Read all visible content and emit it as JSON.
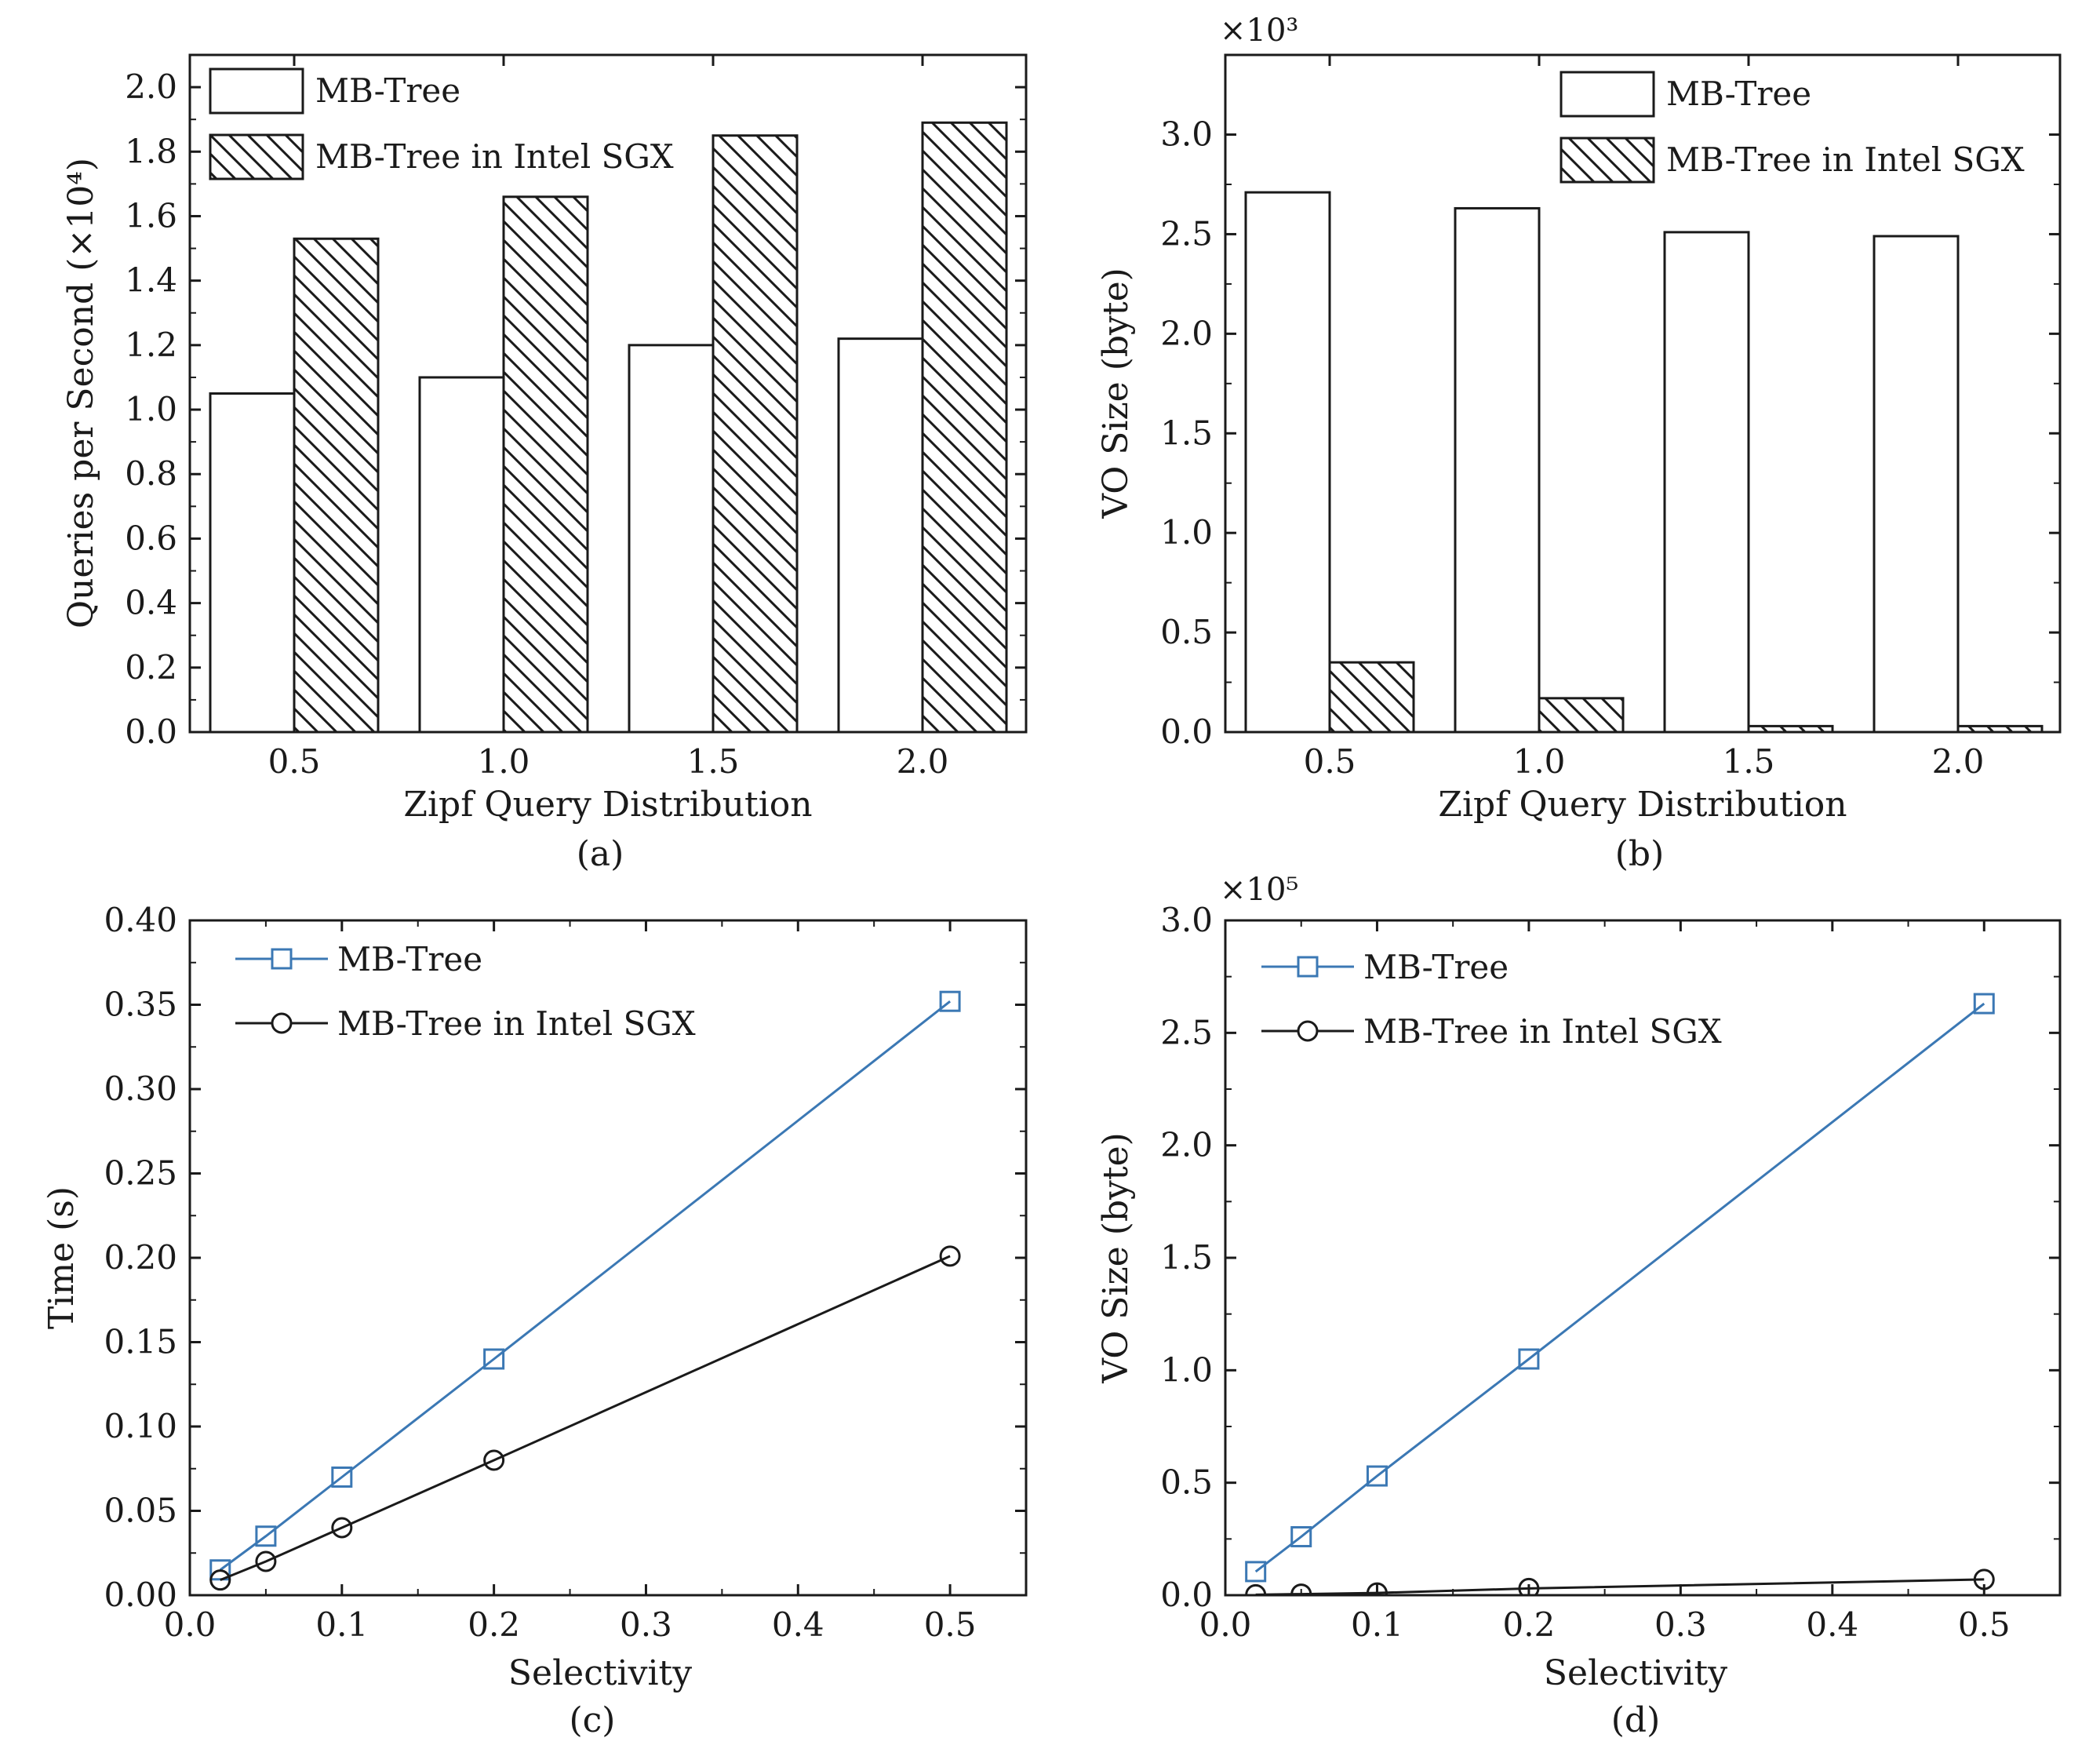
{
  "colors": {
    "mbtree_line": "#3b78b4",
    "sgx_line": "#1a1a1a",
    "axis": "#1a1a1a"
  },
  "chart_data": [
    {
      "type": "bar",
      "panel": "(a)",
      "xlabel": "Zipf Query Distribution",
      "ylabel": "Queries per Second (×10⁴)",
      "categories": [
        "0.5",
        "1.0",
        "1.5",
        "2.0"
      ],
      "ylim": [
        0,
        2.1
      ],
      "yticks": [
        "0.0",
        "0.2",
        "0.4",
        "0.6",
        "0.8",
        "1.0",
        "1.2",
        "1.4",
        "1.6",
        "1.8",
        "2.0"
      ],
      "legend_position": "top-left",
      "series": [
        {
          "name": "MB-Tree",
          "pattern": "plain",
          "values": [
            1.05,
            1.1,
            1.2,
            1.22
          ]
        },
        {
          "name": "MB-Tree in Intel SGX",
          "pattern": "hatched",
          "values": [
            1.53,
            1.66,
            1.85,
            1.89
          ]
        }
      ]
    },
    {
      "type": "bar",
      "panel": "(b)",
      "xlabel": "Zipf Query Distribution",
      "ylabel": "VO Size (byte)",
      "multiplier": "×10³",
      "categories": [
        "0.5",
        "1.0",
        "1.5",
        "2.0"
      ],
      "ylim": [
        0,
        3.4
      ],
      "yticks": [
        "0.0",
        "0.5",
        "1.0",
        "1.5",
        "2.0",
        "2.5",
        "3.0"
      ],
      "legend_position": "top-right",
      "series": [
        {
          "name": "MB-Tree",
          "pattern": "plain",
          "values": [
            2.71,
            2.63,
            2.51,
            2.49
          ]
        },
        {
          "name": "MB-Tree in Intel SGX",
          "pattern": "hatched",
          "values": [
            0.35,
            0.17,
            0.03,
            0.03
          ]
        }
      ]
    },
    {
      "type": "line",
      "panel": "(c)",
      "xlabel": "Selectivity",
      "ylabel": "Time (s)",
      "xlim": [
        0,
        0.55
      ],
      "ylim": [
        0,
        0.4
      ],
      "xticks": [
        "0.0",
        "0.1",
        "0.2",
        "0.3",
        "0.4",
        "0.5"
      ],
      "yticks": [
        "0.00",
        "0.05",
        "0.10",
        "0.15",
        "0.20",
        "0.25",
        "0.30",
        "0.35",
        "0.40"
      ],
      "legend_position": "top-left",
      "x": [
        0.02,
        0.05,
        0.1,
        0.2,
        0.5
      ],
      "series": [
        {
          "name": "MB-Tree",
          "marker": "square",
          "values": [
            0.015,
            0.035,
            0.07,
            0.14,
            0.352
          ]
        },
        {
          "name": "MB-Tree in Intel SGX",
          "marker": "circle",
          "values": [
            0.009,
            0.02,
            0.04,
            0.08,
            0.201
          ]
        }
      ]
    },
    {
      "type": "line",
      "panel": "(d)",
      "xlabel": "Selectivity",
      "ylabel": "VO Size (byte)",
      "multiplier": "×10⁵",
      "xlim": [
        0,
        0.55
      ],
      "ylim": [
        0,
        3.0
      ],
      "xticks": [
        "0.0",
        "0.1",
        "0.2",
        "0.3",
        "0.4",
        "0.5"
      ],
      "yticks": [
        "0.0",
        "0.5",
        "1.0",
        "1.5",
        "2.0",
        "2.5",
        "3.0"
      ],
      "legend_position": "top-left",
      "x": [
        0.02,
        0.05,
        0.1,
        0.2,
        0.5
      ],
      "series": [
        {
          "name": "MB-Tree",
          "marker": "square",
          "values": [
            0.105,
            0.26,
            0.53,
            1.05,
            2.63
          ]
        },
        {
          "name": "MB-Tree in Intel SGX",
          "marker": "circle",
          "values": [
            0.002,
            0.005,
            0.01,
            0.03,
            0.07
          ]
        }
      ]
    }
  ]
}
